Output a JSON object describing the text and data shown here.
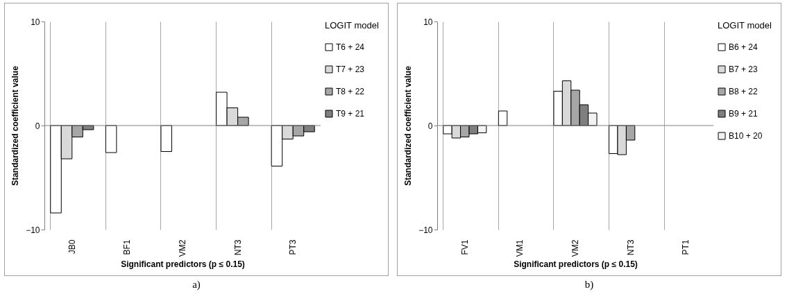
{
  "chart_data": [
    {
      "type": "bar",
      "xlabel": "Significant predictors (p ≤ 0.15)",
      "ylabel": "Standardized coefficient value",
      "legend_title": "LOGIT model",
      "annotations": [
        "a)"
      ],
      "categories": [
        "JB0",
        "BF1",
        "VM2",
        "NT3",
        "PT3"
      ],
      "ylim": [
        -10,
        10
      ],
      "yticks": [
        -10,
        0,
        10
      ],
      "grid": "x",
      "legend": "right",
      "ref_lines": [
        {
          "axis": "y",
          "value": 0,
          "color": "#808080"
        }
      ],
      "series": [
        {
          "name": "T6 + 24",
          "color": "#ffffff",
          "values": [
            -8.4,
            -2.6,
            -2.5,
            3.2,
            -3.9
          ]
        },
        {
          "name": "T7 + 23",
          "color": "#d9d9d9",
          "values": [
            -3.2,
            null,
            null,
            1.7,
            -1.3
          ]
        },
        {
          "name": "T8 + 22",
          "color": "#a6a6a6",
          "values": [
            -1.1,
            null,
            null,
            0.8,
            -1.0
          ]
        },
        {
          "name": "T9 + 21",
          "color": "#7f7f7f",
          "values": [
            -0.4,
            null,
            null,
            null,
            -0.6
          ]
        }
      ]
    },
    {
      "type": "bar",
      "xlabel": "Significant predictors (p ≤ 0.15)",
      "ylabel": "Standardized coefficient value",
      "legend_title": "LOGIT model",
      "annotations": [
        "b)"
      ],
      "categories": [
        "FV1",
        "VM1",
        "VM2",
        "NT3",
        "PT1"
      ],
      "ylim": [
        -10,
        10
      ],
      "yticks": [
        -10,
        0,
        10
      ],
      "grid": "x",
      "legend": "right",
      "ref_lines": [
        {
          "axis": "y",
          "value": 0,
          "color": "#808080"
        }
      ],
      "series": [
        {
          "name": "B6 + 24",
          "color": "#ffffff",
          "values": [
            -0.8,
            1.4,
            3.3,
            -2.7,
            null
          ]
        },
        {
          "name": "B7 + 23",
          "color": "#d9d9d9",
          "values": [
            -1.2,
            null,
            4.3,
            -2.8,
            null
          ]
        },
        {
          "name": "B8 + 22",
          "color": "#a6a6a6",
          "values": [
            -1.1,
            null,
            3.4,
            -1.4,
            null
          ]
        },
        {
          "name": "B9 + 21",
          "color": "#7f7f7f",
          "values": [
            -0.8,
            null,
            2.0,
            null,
            null
          ]
        },
        {
          "name": "B10 + 20",
          "color": "#f2f2f2",
          "values": [
            -0.7,
            null,
            1.2,
            null,
            null
          ]
        }
      ]
    }
  ]
}
